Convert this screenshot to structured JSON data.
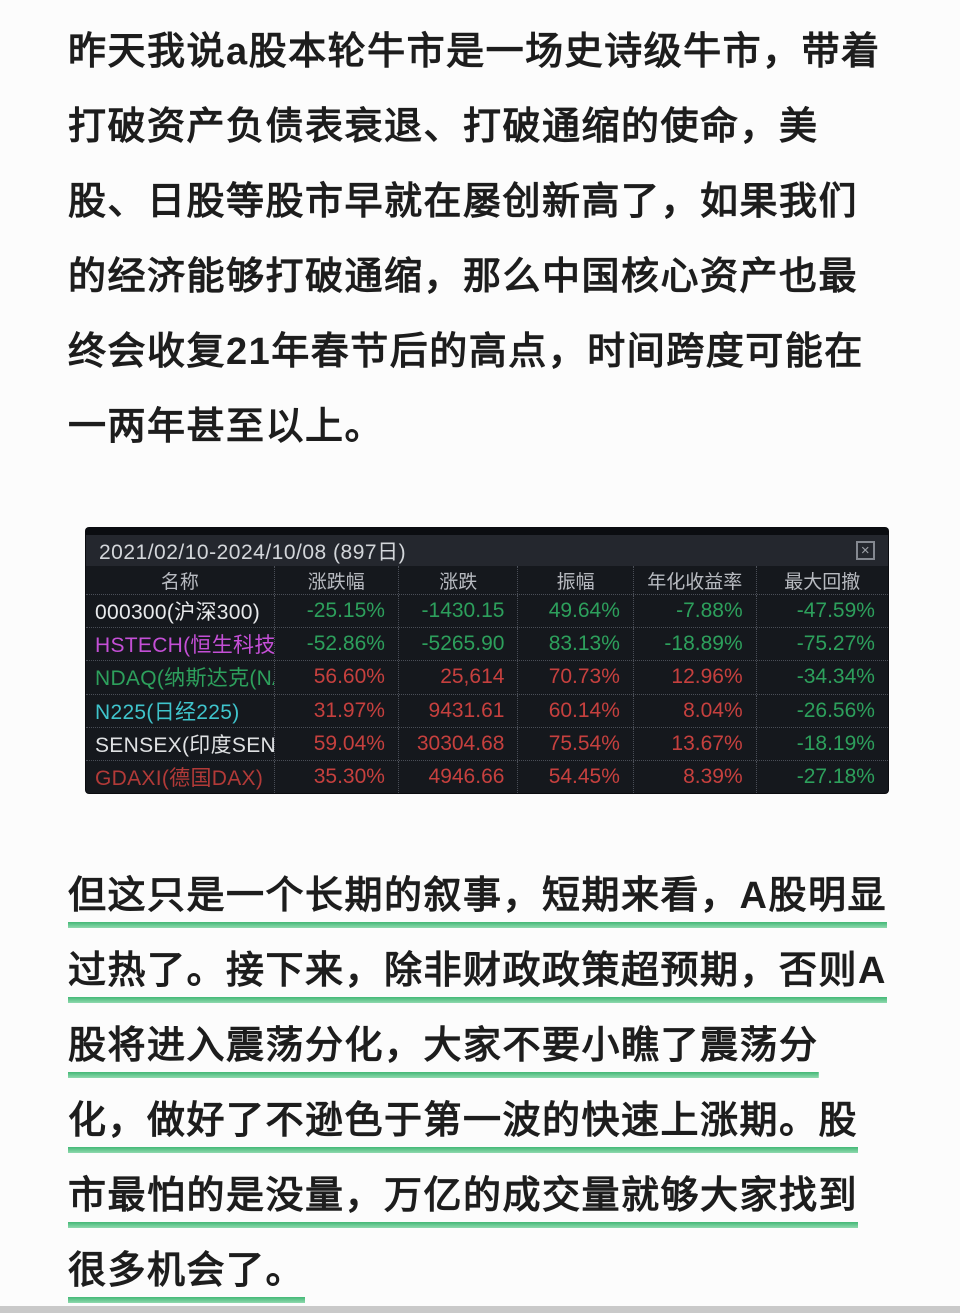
{
  "colors": {
    "up_red": "#c6403e",
    "down_green": "#2da05c",
    "underline_green": "#43b876",
    "panel_background": "#15181d",
    "titlebar_background": "#24272e"
  },
  "paragraph_top": {
    "lines": [
      "昨天我说a股本轮牛市是一场史诗级牛市，带着",
      "打破资产负债表衰退、打破通缩的使命，美",
      "股、日股等股市早就在屡创新高了，如果我们",
      "的经济能够打破通缩，那么中国核心资产也最",
      "终会收复21年春节后的高点，时间跨度可能在",
      "一两年甚至以上。"
    ]
  },
  "stats_panel": {
    "title": "2021/02/10-2024/10/08 (897日)",
    "close_glyph": "×",
    "columns": [
      "名称",
      "涨跌幅",
      "涨跌",
      "振幅",
      "年化收益率",
      "最大回撤"
    ],
    "rows": [
      {
        "name": "000300(沪深300)",
        "name_color": "#e8eaec",
        "values": [
          "-25.15%",
          "-1430.15",
          "49.64%",
          "-7.88%",
          "-47.59%"
        ],
        "trends": [
          "down",
          "down",
          "down",
          "down",
          "down"
        ]
      },
      {
        "name": "HSTECH(恒生科技)",
        "name_color": "#c44fd6",
        "values": [
          "-52.86%",
          "-5265.90",
          "83.13%",
          "-18.89%",
          "-75.27%"
        ],
        "trends": [
          "down",
          "down",
          "down",
          "down",
          "down"
        ]
      },
      {
        "name": "NDAQ(纳斯达克(NAS",
        "name_color": "#2da05c",
        "values": [
          "56.60%",
          "25,614",
          "70.73%",
          "12.96%",
          "-34.34%"
        ],
        "trends": [
          "up",
          "up",
          "up",
          "up",
          "down"
        ]
      },
      {
        "name": "N225(日经225)",
        "name_color": "#3fc4cc",
        "values": [
          "31.97%",
          "9431.61",
          "60.14%",
          "8.04%",
          "-26.56%"
        ],
        "trends": [
          "up",
          "up",
          "up",
          "up",
          "down"
        ]
      },
      {
        "name": "SENSEX(印度SENSEX)",
        "name_color": "#dfe1e3",
        "values": [
          "59.04%",
          "30304.68",
          "75.54%",
          "13.67%",
          "-18.19%"
        ],
        "trends": [
          "up",
          "up",
          "up",
          "up",
          "down"
        ]
      },
      {
        "name": "GDAXI(德国DAX)",
        "name_color": "#b23a38",
        "values": [
          "35.30%",
          "4946.66",
          "54.45%",
          "8.39%",
          "-27.18%"
        ],
        "trends": [
          "up",
          "up",
          "up",
          "up",
          "down"
        ]
      }
    ]
  },
  "paragraph_bottom": {
    "lines": [
      "但这只是一个长期的叙事，短期来看，A股明显",
      "过热了。接下来，除非财政政策超预期，否则A",
      "股将进入震荡分化，大家不要小瞧了震荡分",
      "化，做好了不逊色于第一波的快速上涨期。股",
      "市最怕的是没量，万亿的成交量就够大家找到",
      "很多机会了。"
    ]
  }
}
